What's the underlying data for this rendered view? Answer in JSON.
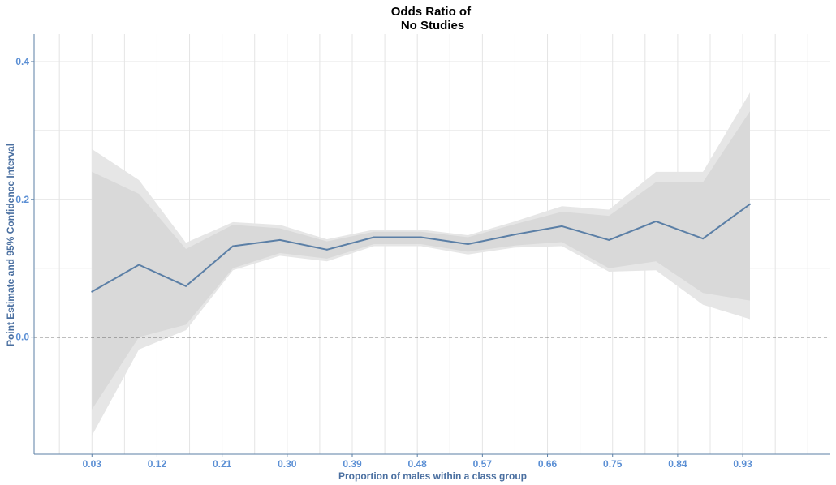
{
  "chart_data": {
    "type": "line",
    "title": [
      "Odds Ratio of",
      "No Studies"
    ],
    "xlabel": "Proportion of males within a class group",
    "ylabel": "Point Estimate and 95% Confidence Interval",
    "x_ticks": [
      "0.03",
      "0.12",
      "0.21",
      "0.30",
      "0.39",
      "0.48",
      "0.57",
      "0.66",
      "0.75",
      "0.84",
      "0.93"
    ],
    "y_ticks": [
      "0.0",
      "0.2",
      "0.4"
    ],
    "xlim": [
      -0.05,
      1.05
    ],
    "ylim": [
      -0.17,
      0.44
    ],
    "grid": true,
    "reference_line": {
      "y": 0.0,
      "style": "dashed",
      "color": "#000000"
    },
    "series": [
      {
        "type": "line",
        "color": "#5b7fa6",
        "x": [
          0.03,
          0.095,
          0.16,
          0.225,
          0.29,
          0.355,
          0.42,
          0.485,
          0.55,
          0.615,
          0.68,
          0.745,
          0.81,
          0.875,
          0.94
        ],
        "y": [
          0.066,
          0.105,
          0.074,
          0.132,
          0.141,
          0.127,
          0.145,
          0.145,
          0.135,
          0.149,
          0.161,
          0.141,
          0.168,
          0.143,
          0.193
        ]
      }
    ],
    "bands": [
      {
        "label": "outer",
        "color": "#e6e6e6",
        "x": [
          0.03,
          0.095,
          0.16,
          0.225,
          0.29,
          0.355,
          0.42,
          0.485,
          0.55,
          0.615,
          0.68,
          0.745,
          0.81,
          0.875,
          0.94
        ],
        "lower": [
          -0.143,
          -0.018,
          0.01,
          0.097,
          0.118,
          0.11,
          0.132,
          0.132,
          0.12,
          0.13,
          0.132,
          0.095,
          0.097,
          0.047,
          0.026
        ],
        "upper": [
          0.273,
          0.228,
          0.137,
          0.167,
          0.163,
          0.142,
          0.156,
          0.156,
          0.148,
          0.168,
          0.19,
          0.185,
          0.24,
          0.24,
          0.355
        ]
      },
      {
        "label": "inner",
        "color": "#d9d9d9",
        "x": [
          0.03,
          0.095,
          0.16,
          0.225,
          0.29,
          0.355,
          0.42,
          0.485,
          0.55,
          0.615,
          0.68,
          0.745,
          0.81,
          0.875,
          0.94
        ],
        "lower": [
          -0.105,
          0.0,
          0.018,
          0.1,
          0.122,
          0.114,
          0.135,
          0.135,
          0.124,
          0.133,
          0.138,
          0.1,
          0.11,
          0.064,
          0.053
        ],
        "upper": [
          0.24,
          0.208,
          0.128,
          0.163,
          0.158,
          0.139,
          0.153,
          0.153,
          0.145,
          0.164,
          0.182,
          0.176,
          0.225,
          0.225,
          0.328
        ]
      }
    ]
  }
}
